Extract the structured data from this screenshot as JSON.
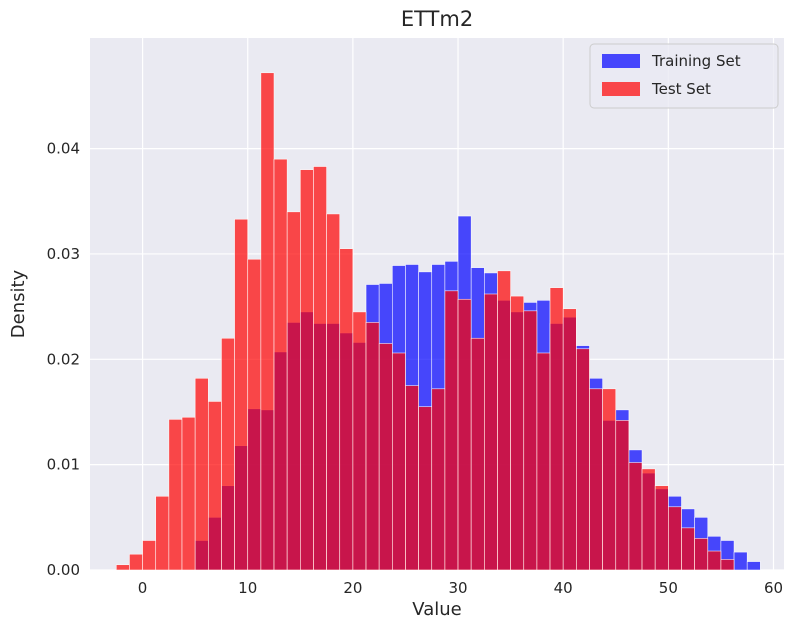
{
  "chart_data": {
    "type": "bar",
    "title": "ETTm2",
    "xlabel": "Value",
    "ylabel": "Density",
    "xlim": [
      -5,
      61
    ],
    "ylim": [
      0,
      0.0505
    ],
    "xticks": [
      0,
      10,
      20,
      30,
      40,
      50,
      60
    ],
    "yticks": [
      0.0,
      0.01,
      0.02,
      0.03,
      0.04
    ],
    "ytick_labels": [
      "0.00",
      "0.01",
      "0.02",
      "0.03",
      "0.04"
    ],
    "grid": true,
    "legend_position": "top-right",
    "bin_width": 1.25,
    "series": [
      {
        "name": "Training Set",
        "color": "#0000ff",
        "bin_start": 0,
        "values": [
          0,
          0,
          0,
          0,
          0.0028,
          0.005,
          0.008,
          0.0118,
          0.0153,
          0.0152,
          0.0207,
          0.0235,
          0.0245,
          0.0234,
          0.0234,
          0.0225,
          0.0216,
          0.0271,
          0.0272,
          0.0289,
          0.029,
          0.0283,
          0.029,
          0.0293,
          0.0336,
          0.0287,
          0.0282,
          0.0256,
          0.0245,
          0.0254,
          0.0256,
          0.0234,
          0.024,
          0.0213,
          0.0182,
          0.0142,
          0.0152,
          0.0114,
          0.0092,
          0.0077,
          0.007,
          0.0058,
          0.005,
          0.0032,
          0.0028,
          0.0017,
          0.0008
        ]
      },
      {
        "name": "Test Set",
        "color": "#ff0000",
        "bin_start": -2.5,
        "values": [
          0.0005,
          0.0015,
          0.0028,
          0.007,
          0.0143,
          0.0145,
          0.0182,
          0.016,
          0.022,
          0.0333,
          0.0295,
          0.0472,
          0.039,
          0.034,
          0.038,
          0.0383,
          0.0338,
          0.0305,
          0.0245,
          0.0235,
          0.0215,
          0.0206,
          0.0175,
          0.0155,
          0.0172,
          0.0265,
          0.0257,
          0.022,
          0.0262,
          0.0284,
          0.026,
          0.0246,
          0.0206,
          0.0268,
          0.0248,
          0.021,
          0.0172,
          0.0172,
          0.0142,
          0.0102,
          0.0096,
          0.008,
          0.006,
          0.004,
          0.003,
          0.0018,
          0.001
        ]
      }
    ]
  }
}
